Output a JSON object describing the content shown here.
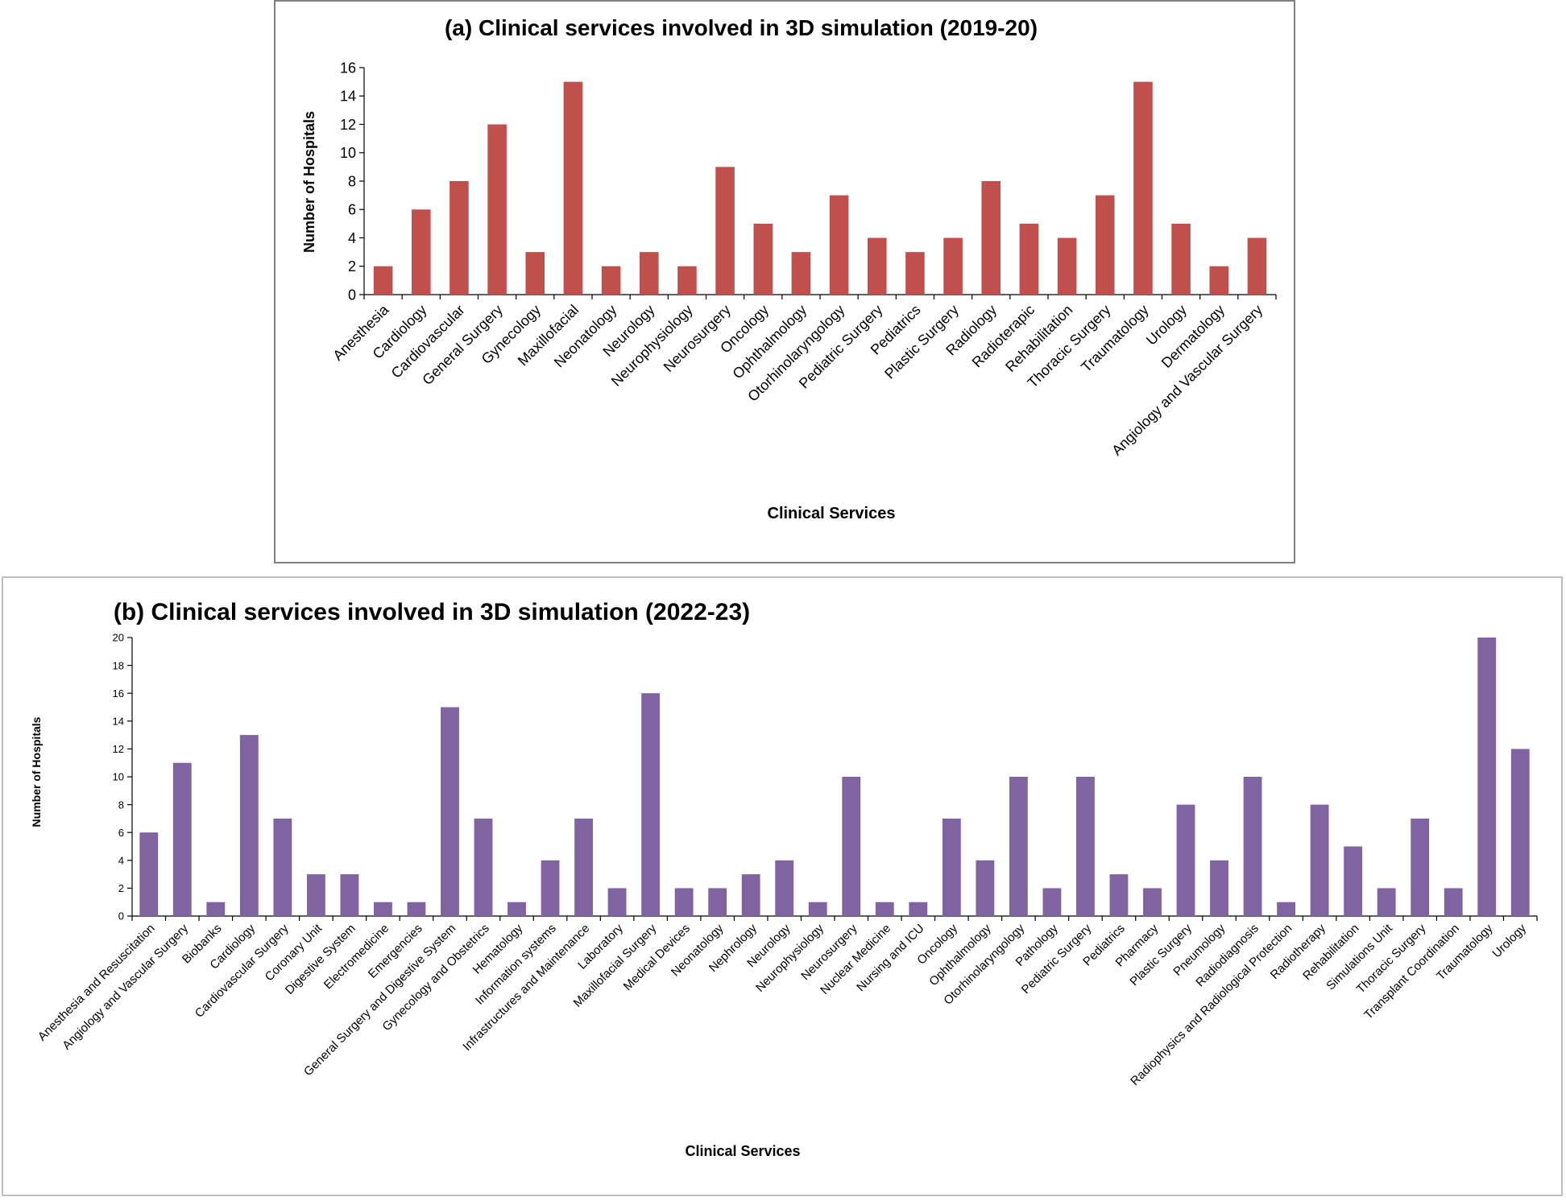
{
  "chart_data": [
    {
      "type": "bar",
      "title": "(a) Clinical services involved in 3D simulation (2019-20)",
      "xlabel": "Clinical Services",
      "ylabel": "Number of Hospitals",
      "ylim": [
        0,
        16
      ],
      "yticks": [
        0,
        2,
        4,
        6,
        8,
        10,
        12,
        14,
        16
      ],
      "color": "#c0504d",
      "categories": [
        "Anesthesia",
        "Cardiology",
        "Cardiovascular",
        "General Surgery",
        "Gynecology",
        "Maxillofacial",
        "Neonatology",
        "Neurology",
        "Neurophysiology",
        "Neurosurgery",
        "Oncology",
        "Ophthalmology",
        "Otorhinolaryngology",
        "Pediatric Surgery",
        "Pediatrics",
        "Plastic Surgery",
        "Radiology",
        "Radioterapic",
        "Rehabilitation",
        "Thoracic Surgery",
        "Traumatology",
        "Urology",
        "Dermatology",
        "Angiology and Vascular Surgery"
      ],
      "values": [
        2,
        6,
        8,
        12,
        3,
        15,
        2,
        3,
        2,
        9,
        5,
        3,
        7,
        4,
        3,
        4,
        8,
        5,
        4,
        7,
        15,
        5,
        2,
        4
      ]
    },
    {
      "type": "bar",
      "title": "(b) Clinical services involved in 3D simulation (2022-23)",
      "xlabel": "Clinical Services",
      "ylabel": "Number of Hospitals",
      "ylim": [
        0,
        20
      ],
      "yticks": [
        0,
        2,
        4,
        6,
        8,
        10,
        12,
        14,
        16,
        18,
        20
      ],
      "color": "#8064a2",
      "categories": [
        "Anesthesia and Resuscitation",
        "Angiology and Vascular Surgery",
        "Biobanks",
        "Cardiology",
        "Cardiovascular Surgery",
        "Coronary Unit",
        "Digestive System",
        "Electromedicine",
        "Emergencies",
        "General Surgery and Digestive System",
        "Gynecology and Obstetrics",
        "Hematology",
        "Information systems",
        "Infrastructures and Maintenance",
        "Laboratory",
        "Maxillofacial Surgery",
        "Medical Devices",
        "Neonatology",
        "Nephrology",
        "Neurology",
        "Neurophysiology",
        "Neurosurgery",
        "Nuclear Medicine",
        "Nursing and ICU",
        "Oncology",
        "Ophthalmology",
        "Otorhinolaryngology",
        "Pathology",
        "Pediatric Surgery",
        "Pediatrics",
        "Pharmacy",
        "Plastic Surgery",
        "Pneumology",
        "Radiodiagnosis",
        "Radiophysics and Radiological Protection",
        "Radiotherapy",
        "Rehabilitation",
        "Simulations Unit",
        "Thoracic Surgery",
        "Transplant Coordination",
        "Traumatology",
        "Urology"
      ],
      "values": [
        6,
        11,
        1,
        13,
        7,
        3,
        3,
        1,
        1,
        15,
        7,
        1,
        4,
        7,
        2,
        16,
        2,
        2,
        3,
        4,
        1,
        10,
        1,
        1,
        7,
        4,
        10,
        2,
        10,
        3,
        2,
        8,
        4,
        10,
        1,
        8,
        5,
        2,
        7,
        2,
        20,
        12
      ]
    }
  ]
}
